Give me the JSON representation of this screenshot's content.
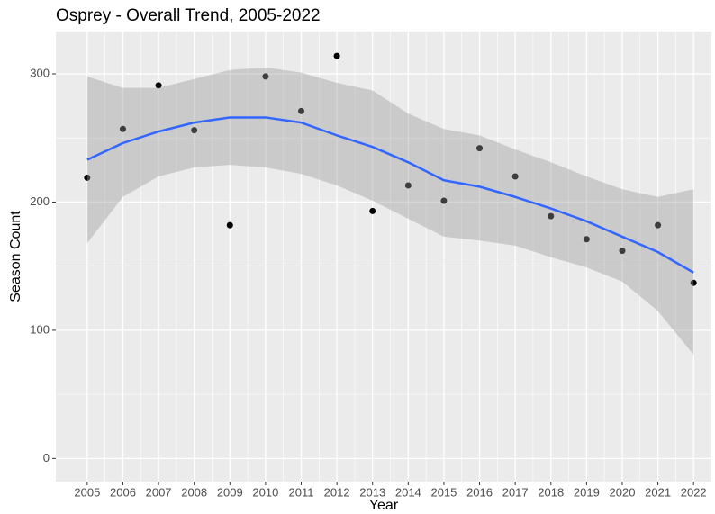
{
  "chart_data": {
    "type": "scatter",
    "title": "Osprey - Overall Trend, 2005-2022",
    "x_label": "Year",
    "y_label": "Season Count",
    "x": [
      2005,
      2006,
      2007,
      2008,
      2009,
      2010,
      2011,
      2012,
      2013,
      2014,
      2015,
      2016,
      2017,
      2018,
      2019,
      2020,
      2021,
      2022
    ],
    "values": [
      219,
      257,
      291,
      256,
      182,
      298,
      271,
      314,
      193,
      213,
      201,
      242,
      220,
      189,
      171,
      162,
      182,
      137
    ],
    "color": "#000000",
    "smooth": {
      "color": "#3366ff",
      "band_color": "#999999",
      "values": [
        233,
        246,
        255,
        262,
        266,
        266,
        262,
        252,
        243,
        231,
        217,
        212,
        204,
        195,
        185,
        173,
        161,
        145
      ],
      "lower": [
        168,
        204,
        220,
        227,
        229,
        227,
        222,
        213,
        201,
        187,
        173,
        170,
        166,
        157,
        149,
        138,
        115,
        81
      ],
      "upper": [
        298,
        289,
        289,
        296,
        303,
        305,
        301,
        293,
        287,
        269,
        257,
        252,
        241,
        231,
        220,
        210,
        204,
        210
      ]
    },
    "xlim": [
      2004.12,
      2022.5
    ],
    "xticks": [
      2005,
      2006,
      2007,
      2008,
      2009,
      2010,
      2011,
      2012,
      2013,
      2014,
      2015,
      2016,
      2017,
      2018,
      2019,
      2020,
      2021,
      2022
    ],
    "ylim": [
      -18,
      333
    ],
    "yticks": [
      0,
      100,
      200,
      300
    ],
    "grid": true
  }
}
